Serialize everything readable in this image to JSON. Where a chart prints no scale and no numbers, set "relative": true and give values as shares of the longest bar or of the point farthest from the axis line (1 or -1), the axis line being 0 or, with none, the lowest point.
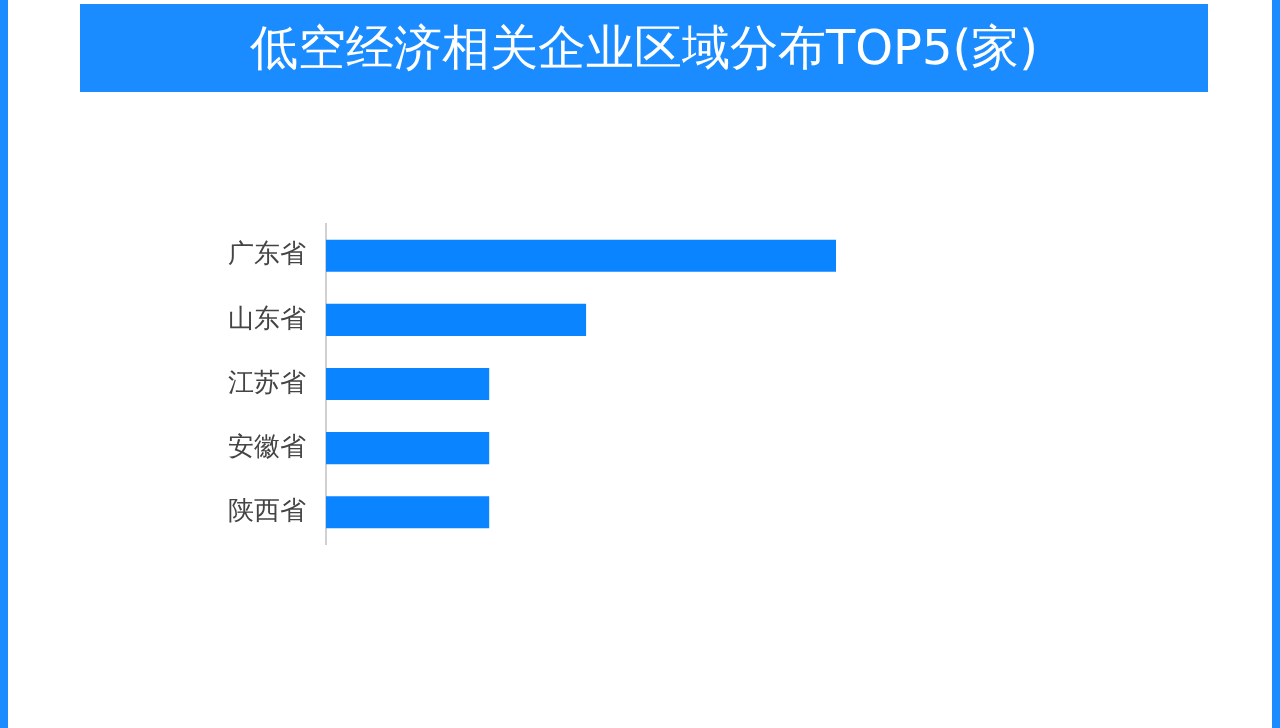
{
  "chart_data": {
    "type": "bar",
    "orientation": "horizontal",
    "relative": true,
    "title": "低空经济相关企业区域分布TOP5(家)",
    "categories": [
      "广东省",
      "山东省",
      "江苏省",
      "安徽省",
      "陕西省"
    ],
    "values": [
      1,
      0.51,
      0.32,
      0.32,
      0.32
    ],
    "color": "#0a84ff",
    "legend": false
  }
}
